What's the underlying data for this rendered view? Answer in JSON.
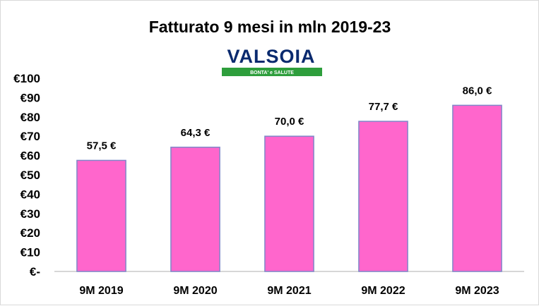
{
  "chart_data": {
    "type": "bar",
    "title": "Fatturato  9 mesi in mln 2019-23",
    "logo": {
      "name": "VALSOIA",
      "tagline": "BONTA' e SALUTE"
    },
    "categories": [
      "9M 2019",
      "9M 2020",
      "9M 2021",
      "9M 2022",
      "9M 2023"
    ],
    "values": [
      57.5,
      64.3,
      70.0,
      77.7,
      86.0
    ],
    "data_labels": [
      "57,5 €",
      "64,3 €",
      "70,0 €",
      "77,7 €",
      "86,0 €"
    ],
    "y_ticks": [
      0,
      10,
      20,
      30,
      40,
      50,
      60,
      70,
      80,
      90,
      100
    ],
    "y_tick_labels": [
      "€-",
      "€10",
      "€20",
      "€30",
      "€40",
      "€50",
      "€60",
      "€70",
      "€80",
      "€90",
      "€100"
    ],
    "ylim": [
      0,
      100
    ],
    "xlabel": "",
    "ylabel": "",
    "grid": false,
    "legend": "none",
    "colors": {
      "bar_fill": "#ff66cc",
      "bar_stroke": "#7f86c8",
      "axis": "#bfbfbf",
      "logo_green": "#2e9e3c",
      "logo_blue": "#0a2a6e"
    }
  }
}
